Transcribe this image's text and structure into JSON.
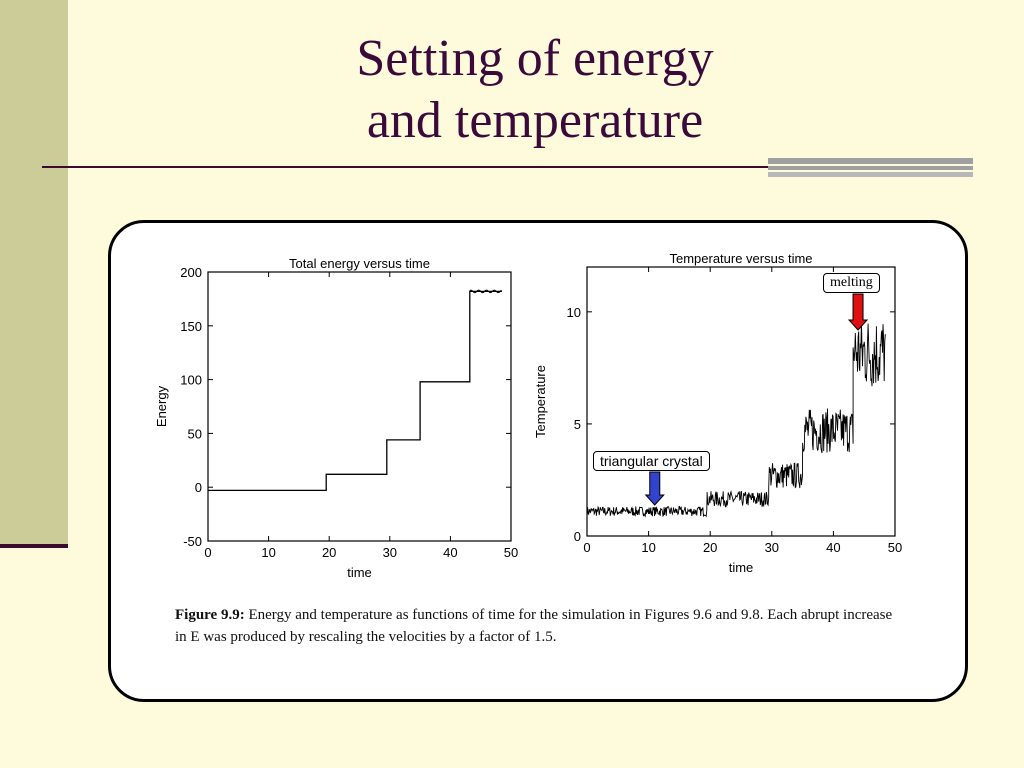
{
  "slide": {
    "title_line1": "Setting of energy",
    "title_line2": "and temperature"
  },
  "chart_data": [
    {
      "type": "line",
      "title": "Total energy versus time",
      "xlabel": "time",
      "ylabel": "Energy",
      "xlim": [
        0,
        50
      ],
      "ylim": [
        -50,
        200
      ],
      "xticks": [
        0,
        10,
        20,
        30,
        40,
        50
      ],
      "yticks": [
        -50,
        0,
        50,
        100,
        150,
        200
      ],
      "steps": [
        {
          "t0": 0,
          "t1": 19.5,
          "E": -3
        },
        {
          "t0": 19.5,
          "t1": 29.5,
          "E": 12
        },
        {
          "t0": 29.5,
          "t1": 35,
          "E": 44
        },
        {
          "t0": 35,
          "t1": 43.2,
          "E": 98
        },
        {
          "t0": 43.2,
          "t1": 48.5,
          "E": 182
        }
      ]
    },
    {
      "type": "line",
      "title": "Temperature versus time",
      "xlabel": "time",
      "ylabel": "Temperature",
      "xlim": [
        0,
        50
      ],
      "ylim": [
        0,
        12
      ],
      "xticks": [
        0,
        10,
        20,
        30,
        40,
        50
      ],
      "yticks": [
        0,
        5,
        10
      ],
      "segments": [
        {
          "t0": 0,
          "t1": 19.5,
          "mean": 1.1,
          "noise": 0.22
        },
        {
          "t0": 19.5,
          "t1": 29.5,
          "mean": 1.65,
          "noise": 0.35
        },
        {
          "t0": 29.5,
          "t1": 35,
          "mean": 2.7,
          "noise": 0.6
        },
        {
          "t0": 35,
          "t1": 43.2,
          "mean": 4.7,
          "noise": 1.0
        },
        {
          "t0": 43.2,
          "t1": 48.5,
          "mean": 8.2,
          "noise": 1.7
        }
      ],
      "annotations": [
        {
          "label": "triangular crystal",
          "t": 11,
          "color": "#3344cc"
        },
        {
          "label": "melting",
          "t": 44,
          "color": "#e01010"
        }
      ]
    }
  ],
  "caption": {
    "label": "Figure 9.9:",
    "text": "Energy and temperature as functions of time for the simulation in Figures 9.6 and 9.8. Each abrupt increase in E was produced by rescaling the velocities by a factor of 1.5."
  }
}
